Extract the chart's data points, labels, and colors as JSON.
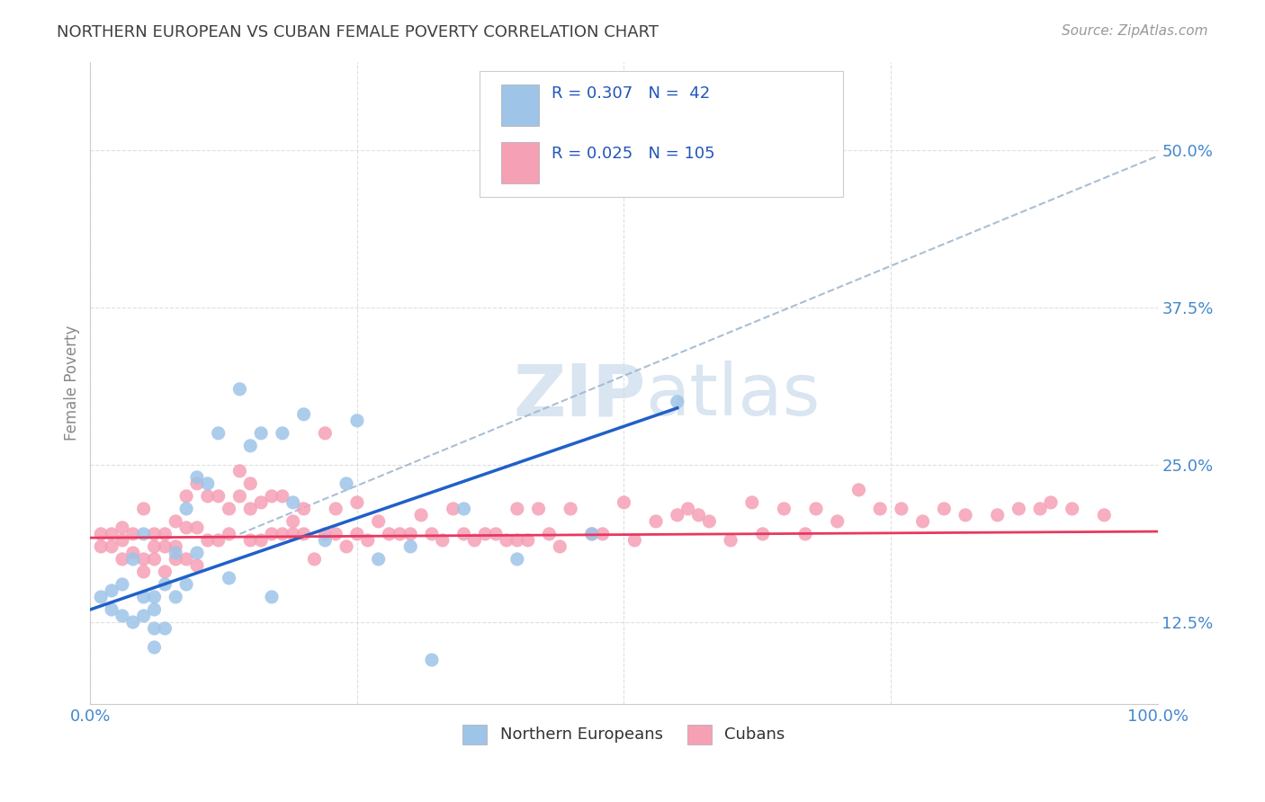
{
  "title": "NORTHERN EUROPEAN VS CUBAN FEMALE POVERTY CORRELATION CHART",
  "source": "Source: ZipAtlas.com",
  "ylabel": "Female Poverty",
  "ytick_labels": [
    "12.5%",
    "25.0%",
    "37.5%",
    "50.0%"
  ],
  "ytick_values": [
    0.125,
    0.25,
    0.375,
    0.5
  ],
  "xtick_values": [
    0.0,
    0.25,
    0.5,
    0.75,
    1.0
  ],
  "xlim": [
    0.0,
    1.0
  ],
  "ylim": [
    0.06,
    0.57
  ],
  "R_blue": 0.307,
  "N_blue": 42,
  "R_pink": 0.025,
  "N_pink": 105,
  "blue_scatter_color": "#9ec4e8",
  "pink_scatter_color": "#f5a0b5",
  "blue_line_color": "#2060c8",
  "pink_line_color": "#e83860",
  "dashed_line_color": "#a0b8d0",
  "title_color": "#404040",
  "axis_tick_color": "#4488cc",
  "legend_text_color": "#2255bb",
  "watermark_color": "#c0d4e8",
  "background_color": "#ffffff",
  "grid_color": "#d8d8d8",
  "blue_line_x0": 0.0,
  "blue_line_y0": 0.135,
  "blue_line_x1": 0.55,
  "blue_line_y1": 0.295,
  "pink_line_x0": 0.0,
  "pink_line_y0": 0.192,
  "pink_line_x1": 1.0,
  "pink_line_y1": 0.197,
  "dash_line_x0": 0.14,
  "dash_line_y0": 0.195,
  "dash_line_x1": 1.0,
  "dash_line_y1": 0.495,
  "blue_scatter_x": [
    0.01,
    0.02,
    0.02,
    0.03,
    0.03,
    0.04,
    0.04,
    0.05,
    0.05,
    0.05,
    0.06,
    0.06,
    0.06,
    0.06,
    0.07,
    0.07,
    0.08,
    0.08,
    0.09,
    0.09,
    0.1,
    0.1,
    0.11,
    0.12,
    0.13,
    0.14,
    0.15,
    0.16,
    0.17,
    0.18,
    0.19,
    0.2,
    0.22,
    0.24,
    0.25,
    0.27,
    0.3,
    0.32,
    0.35,
    0.4,
    0.47,
    0.55
  ],
  "blue_scatter_y": [
    0.145,
    0.135,
    0.15,
    0.13,
    0.155,
    0.125,
    0.175,
    0.13,
    0.145,
    0.195,
    0.135,
    0.145,
    0.105,
    0.12,
    0.155,
    0.12,
    0.18,
    0.145,
    0.215,
    0.155,
    0.24,
    0.18,
    0.235,
    0.275,
    0.16,
    0.31,
    0.265,
    0.275,
    0.145,
    0.275,
    0.22,
    0.29,
    0.19,
    0.235,
    0.285,
    0.175,
    0.185,
    0.095,
    0.215,
    0.175,
    0.195,
    0.3
  ],
  "pink_scatter_x": [
    0.01,
    0.01,
    0.02,
    0.02,
    0.03,
    0.03,
    0.03,
    0.04,
    0.04,
    0.05,
    0.05,
    0.05,
    0.06,
    0.06,
    0.06,
    0.07,
    0.07,
    0.07,
    0.08,
    0.08,
    0.08,
    0.09,
    0.09,
    0.09,
    0.1,
    0.1,
    0.1,
    0.11,
    0.11,
    0.12,
    0.12,
    0.13,
    0.13,
    0.14,
    0.14,
    0.15,
    0.15,
    0.15,
    0.16,
    0.16,
    0.17,
    0.17,
    0.18,
    0.18,
    0.19,
    0.19,
    0.2,
    0.2,
    0.21,
    0.22,
    0.22,
    0.23,
    0.23,
    0.24,
    0.25,
    0.25,
    0.26,
    0.27,
    0.28,
    0.29,
    0.3,
    0.31,
    0.32,
    0.33,
    0.34,
    0.35,
    0.36,
    0.37,
    0.38,
    0.39,
    0.4,
    0.4,
    0.41,
    0.42,
    0.43,
    0.44,
    0.45,
    0.47,
    0.48,
    0.5,
    0.51,
    0.53,
    0.55,
    0.56,
    0.57,
    0.58,
    0.6,
    0.62,
    0.63,
    0.65,
    0.67,
    0.68,
    0.7,
    0.72,
    0.74,
    0.76,
    0.78,
    0.8,
    0.82,
    0.85,
    0.87,
    0.89,
    0.9,
    0.92,
    0.95
  ],
  "pink_scatter_y": [
    0.185,
    0.195,
    0.185,
    0.195,
    0.175,
    0.19,
    0.2,
    0.18,
    0.195,
    0.165,
    0.175,
    0.215,
    0.175,
    0.185,
    0.195,
    0.165,
    0.185,
    0.195,
    0.175,
    0.185,
    0.205,
    0.175,
    0.2,
    0.225,
    0.17,
    0.2,
    0.235,
    0.19,
    0.225,
    0.19,
    0.225,
    0.195,
    0.215,
    0.225,
    0.245,
    0.19,
    0.215,
    0.235,
    0.19,
    0.22,
    0.195,
    0.225,
    0.195,
    0.225,
    0.195,
    0.205,
    0.195,
    0.215,
    0.175,
    0.195,
    0.275,
    0.195,
    0.215,
    0.185,
    0.195,
    0.22,
    0.19,
    0.205,
    0.195,
    0.195,
    0.195,
    0.21,
    0.195,
    0.19,
    0.215,
    0.195,
    0.19,
    0.195,
    0.195,
    0.19,
    0.19,
    0.215,
    0.19,
    0.215,
    0.195,
    0.185,
    0.215,
    0.195,
    0.195,
    0.22,
    0.19,
    0.205,
    0.21,
    0.215,
    0.21,
    0.205,
    0.19,
    0.22,
    0.195,
    0.215,
    0.195,
    0.215,
    0.205,
    0.23,
    0.215,
    0.215,
    0.205,
    0.215,
    0.21,
    0.21,
    0.215,
    0.215,
    0.22,
    0.215,
    0.21
  ]
}
